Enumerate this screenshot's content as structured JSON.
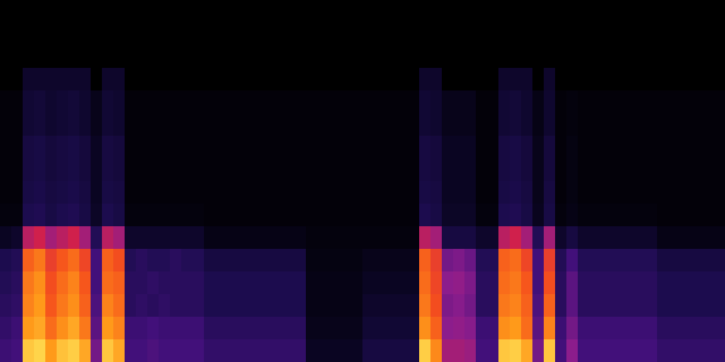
{
  "chart_data": {
    "type": "heatmap",
    "tick_labels": false,
    "zlim": [
      0,
      1
    ],
    "cells": [
      [
        0,
        0,
        0,
        0,
        0,
        0,
        0,
        0,
        0,
        0,
        0,
        0,
        0,
        0,
        0,
        0,
        0,
        0,
        0,
        0,
        0,
        0,
        0,
        0,
        0,
        0,
        0,
        0,
        0,
        0,
        0,
        0,
        0,
        0,
        0,
        0,
        0,
        0,
        0,
        0,
        0,
        0,
        0,
        0,
        0,
        0,
        0,
        0,
        0,
        0,
        0,
        0,
        0,
        0,
        0,
        0,
        0,
        0,
        0,
        0,
        0,
        0,
        0,
        0
      ],
      [
        0,
        0,
        0,
        0,
        0,
        0,
        0,
        0,
        0,
        0,
        0,
        0,
        0,
        0,
        0,
        0,
        0,
        0,
        0,
        0,
        0,
        0,
        0,
        0,
        0,
        0,
        0,
        0,
        0,
        0,
        0,
        0,
        0,
        0,
        0,
        0,
        0,
        0,
        0,
        0,
        0,
        0,
        0,
        0,
        0,
        0,
        0,
        0,
        0,
        0,
        0,
        0,
        0,
        0,
        0,
        0,
        0,
        0,
        0,
        0,
        0,
        0,
        0,
        0
      ],
      [
        0,
        0,
        0,
        0,
        0,
        0,
        0,
        0,
        0,
        0,
        0,
        0,
        0,
        0,
        0,
        0,
        0,
        0,
        0,
        0,
        0,
        0,
        0,
        0,
        0,
        0,
        0,
        0,
        0,
        0,
        0,
        0,
        0,
        0,
        0,
        0,
        0,
        0,
        0,
        0,
        0,
        0,
        0,
        0,
        0,
        0,
        0,
        0,
        0,
        0,
        0,
        0,
        0,
        0,
        0,
        0,
        0,
        0,
        0,
        0,
        0,
        0,
        0,
        0
      ],
      [
        0,
        0,
        0.1,
        0.1,
        0.1,
        0.1,
        0.1,
        0.1,
        0,
        0.1,
        0.1,
        0,
        0,
        0,
        0,
        0,
        0,
        0,
        0,
        0,
        0,
        0,
        0,
        0,
        0,
        0,
        0,
        0,
        0,
        0,
        0,
        0,
        0,
        0,
        0,
        0,
        0,
        0.1,
        0.1,
        0,
        0,
        0,
        0,
        0,
        0.1,
        0.1,
        0.1,
        0,
        0.1,
        0,
        0,
        0,
        0,
        0,
        0,
        0,
        0,
        0,
        0,
        0,
        0,
        0,
        0,
        0
      ],
      [
        0.02,
        0.02,
        0.12,
        0.13,
        0.11,
        0.12,
        0.13,
        0.11,
        0.06,
        0.12,
        0.11,
        0.02,
        0.02,
        0.02,
        0.02,
        0.02,
        0.02,
        0.02,
        0.02,
        0.02,
        0.02,
        0.02,
        0.02,
        0.02,
        0.02,
        0.02,
        0.02,
        0.02,
        0.02,
        0.02,
        0.02,
        0.02,
        0.02,
        0.02,
        0.02,
        0.02,
        0.02,
        0.12,
        0.11,
        0.06,
        0.06,
        0.06,
        0.02,
        0.02,
        0.12,
        0.13,
        0.11,
        0.05,
        0.11,
        0.02,
        0.03,
        0.02,
        0.02,
        0.02,
        0.02,
        0.02,
        0.02,
        0.02,
        0.02,
        0.02,
        0.02,
        0.02,
        0.02,
        0.02
      ],
      [
        0.02,
        0.02,
        0.12,
        0.13,
        0.11,
        0.12,
        0.13,
        0.11,
        0.06,
        0.12,
        0.11,
        0.02,
        0.02,
        0.02,
        0.02,
        0.02,
        0.02,
        0.02,
        0.02,
        0.02,
        0.02,
        0.02,
        0.02,
        0.02,
        0.02,
        0.02,
        0.02,
        0.02,
        0.02,
        0.02,
        0.02,
        0.02,
        0.02,
        0.02,
        0.02,
        0.02,
        0.02,
        0.12,
        0.11,
        0.06,
        0.06,
        0.06,
        0.02,
        0.02,
        0.12,
        0.13,
        0.11,
        0.05,
        0.11,
        0.02,
        0.03,
        0.02,
        0.02,
        0.02,
        0.02,
        0.02,
        0.02,
        0.02,
        0.02,
        0.02,
        0.02,
        0.02,
        0.02,
        0.02
      ],
      [
        0.02,
        0.02,
        0.15,
        0.16,
        0.14,
        0.15,
        0.16,
        0.14,
        0.08,
        0.15,
        0.14,
        0.02,
        0.02,
        0.02,
        0.02,
        0.02,
        0.02,
        0.02,
        0.02,
        0.02,
        0.02,
        0.02,
        0.02,
        0.02,
        0.02,
        0.02,
        0.02,
        0.02,
        0.02,
        0.02,
        0.02,
        0.02,
        0.02,
        0.02,
        0.02,
        0.02,
        0.02,
        0.15,
        0.14,
        0.08,
        0.08,
        0.08,
        0.02,
        0.02,
        0.15,
        0.16,
        0.14,
        0.06,
        0.14,
        0.02,
        0.04,
        0.02,
        0.02,
        0.02,
        0.02,
        0.02,
        0.02,
        0.02,
        0.02,
        0.02,
        0.02,
        0.02,
        0.02,
        0.02
      ],
      [
        0.02,
        0.02,
        0.15,
        0.16,
        0.14,
        0.15,
        0.16,
        0.14,
        0.08,
        0.15,
        0.14,
        0.02,
        0.02,
        0.02,
        0.02,
        0.02,
        0.02,
        0.02,
        0.02,
        0.02,
        0.02,
        0.02,
        0.02,
        0.02,
        0.02,
        0.02,
        0.02,
        0.02,
        0.02,
        0.02,
        0.02,
        0.02,
        0.02,
        0.02,
        0.02,
        0.02,
        0.02,
        0.15,
        0.14,
        0.08,
        0.08,
        0.08,
        0.02,
        0.02,
        0.15,
        0.16,
        0.14,
        0.06,
        0.14,
        0.02,
        0.04,
        0.02,
        0.02,
        0.02,
        0.02,
        0.02,
        0.02,
        0.02,
        0.02,
        0.02,
        0.02,
        0.02,
        0.02,
        0.02
      ],
      [
        0.02,
        0.02,
        0.16,
        0.17,
        0.15,
        0.16,
        0.17,
        0.15,
        0.08,
        0.16,
        0.15,
        0.02,
        0.02,
        0.02,
        0.02,
        0.02,
        0.02,
        0.02,
        0.02,
        0.02,
        0.02,
        0.02,
        0.02,
        0.02,
        0.02,
        0.02,
        0.02,
        0.02,
        0.02,
        0.02,
        0.02,
        0.02,
        0.02,
        0.02,
        0.02,
        0.02,
        0.02,
        0.16,
        0.15,
        0.08,
        0.08,
        0.08,
        0.02,
        0.02,
        0.16,
        0.17,
        0.15,
        0.06,
        0.15,
        0.02,
        0.04,
        0.02,
        0.02,
        0.02,
        0.02,
        0.02,
        0.02,
        0.02,
        0.02,
        0.02,
        0.02,
        0.02,
        0.02,
        0.02
      ],
      [
        0.03,
        0.03,
        0.18,
        0.19,
        0.16,
        0.18,
        0.19,
        0.16,
        0.09,
        0.18,
        0.16,
        0.03,
        0.03,
        0.03,
        0.03,
        0.03,
        0.03,
        0.03,
        0.02,
        0.02,
        0.02,
        0.02,
        0.02,
        0.02,
        0.02,
        0.02,
        0.02,
        0.02,
        0.02,
        0.02,
        0.02,
        0.02,
        0.02,
        0.02,
        0.02,
        0.02,
        0.02,
        0.18,
        0.16,
        0.09,
        0.09,
        0.09,
        0.03,
        0.03,
        0.18,
        0.19,
        0.16,
        0.07,
        0.16,
        0.03,
        0.05,
        0.03,
        0.03,
        0.03,
        0.03,
        0.03,
        0.03,
        0.03,
        0.02,
        0.02,
        0.02,
        0.02,
        0.02,
        0.02
      ],
      [
        0.08,
        0.1,
        0.55,
        0.6,
        0.5,
        0.55,
        0.6,
        0.5,
        0.2,
        0.55,
        0.5,
        0.1,
        0.1,
        0.1,
        0.1,
        0.1,
        0.1,
        0.1,
        0.05,
        0.05,
        0.05,
        0.05,
        0.05,
        0.05,
        0.05,
        0.05,
        0.05,
        0.03,
        0.03,
        0.03,
        0.03,
        0.03,
        0.03,
        0.03,
        0.03,
        0.03,
        0.03,
        0.55,
        0.5,
        0.15,
        0.15,
        0.15,
        0.1,
        0.1,
        0.55,
        0.6,
        0.5,
        0.2,
        0.5,
        0.1,
        0.15,
        0.1,
        0.1,
        0.1,
        0.1,
        0.1,
        0.1,
        0.1,
        0.05,
        0.05,
        0.05,
        0.05,
        0.05,
        0.05
      ],
      [
        0.18,
        0.2,
        0.78,
        0.82,
        0.7,
        0.76,
        0.8,
        0.72,
        0.3,
        0.78,
        0.74,
        0.2,
        0.22,
        0.2,
        0.2,
        0.22,
        0.2,
        0.2,
        0.15,
        0.15,
        0.15,
        0.15,
        0.15,
        0.15,
        0.15,
        0.15,
        0.15,
        0.04,
        0.04,
        0.04,
        0.04,
        0.04,
        0.06,
        0.06,
        0.06,
        0.06,
        0.06,
        0.78,
        0.7,
        0.4,
        0.42,
        0.38,
        0.2,
        0.2,
        0.78,
        0.8,
        0.72,
        0.3,
        0.7,
        0.2,
        0.3,
        0.2,
        0.2,
        0.2,
        0.2,
        0.2,
        0.2,
        0.2,
        0.15,
        0.15,
        0.15,
        0.15,
        0.15,
        0.15
      ],
      [
        0.2,
        0.22,
        0.82,
        0.86,
        0.74,
        0.8,
        0.84,
        0.76,
        0.3,
        0.8,
        0.78,
        0.22,
        0.22,
        0.24,
        0.22,
        0.22,
        0.22,
        0.22,
        0.18,
        0.18,
        0.18,
        0.18,
        0.18,
        0.18,
        0.18,
        0.18,
        0.18,
        0.05,
        0.05,
        0.05,
        0.05,
        0.05,
        0.08,
        0.08,
        0.08,
        0.08,
        0.08,
        0.8,
        0.72,
        0.45,
        0.46,
        0.42,
        0.22,
        0.22,
        0.8,
        0.82,
        0.76,
        0.3,
        0.74,
        0.22,
        0.35,
        0.22,
        0.22,
        0.22,
        0.22,
        0.22,
        0.22,
        0.22,
        0.18,
        0.18,
        0.18,
        0.18,
        0.18,
        0.18
      ],
      [
        0.22,
        0.24,
        0.84,
        0.88,
        0.76,
        0.82,
        0.86,
        0.78,
        0.32,
        0.84,
        0.8,
        0.22,
        0.24,
        0.22,
        0.24,
        0.22,
        0.22,
        0.22,
        0.18,
        0.18,
        0.18,
        0.18,
        0.18,
        0.18,
        0.18,
        0.18,
        0.18,
        0.05,
        0.05,
        0.05,
        0.05,
        0.05,
        0.1,
        0.1,
        0.1,
        0.1,
        0.1,
        0.82,
        0.74,
        0.42,
        0.44,
        0.4,
        0.22,
        0.22,
        0.82,
        0.84,
        0.78,
        0.32,
        0.78,
        0.22,
        0.35,
        0.22,
        0.22,
        0.22,
        0.22,
        0.22,
        0.22,
        0.22,
        0.18,
        0.18,
        0.18,
        0.18,
        0.18,
        0.18
      ],
      [
        0.25,
        0.28,
        0.88,
        0.9,
        0.8,
        0.86,
        0.9,
        0.82,
        0.35,
        0.88,
        0.84,
        0.28,
        0.28,
        0.3,
        0.28,
        0.28,
        0.28,
        0.28,
        0.22,
        0.22,
        0.22,
        0.22,
        0.22,
        0.22,
        0.22,
        0.22,
        0.22,
        0.06,
        0.06,
        0.06,
        0.06,
        0.06,
        0.12,
        0.12,
        0.12,
        0.12,
        0.12,
        0.86,
        0.78,
        0.45,
        0.46,
        0.44,
        0.28,
        0.28,
        0.86,
        0.88,
        0.8,
        0.35,
        0.84,
        0.28,
        0.4,
        0.28,
        0.28,
        0.28,
        0.28,
        0.28,
        0.28,
        0.28,
        0.22,
        0.22,
        0.22,
        0.22,
        0.22,
        0.22
      ],
      [
        0.28,
        0.3,
        0.95,
        0.97,
        0.88,
        0.94,
        0.96,
        0.9,
        0.4,
        0.95,
        0.9,
        0.3,
        0.3,
        0.32,
        0.3,
        0.3,
        0.3,
        0.3,
        0.25,
        0.25,
        0.25,
        0.25,
        0.25,
        0.25,
        0.25,
        0.25,
        0.25,
        0.08,
        0.08,
        0.08,
        0.08,
        0.08,
        0.15,
        0.15,
        0.15,
        0.15,
        0.15,
        0.96,
        0.85,
        0.5,
        0.5,
        0.48,
        0.3,
        0.3,
        0.95,
        0.96,
        0.9,
        0.4,
        0.95,
        0.3,
        0.45,
        0.3,
        0.3,
        0.3,
        0.3,
        0.3,
        0.3,
        0.3,
        0.25,
        0.25,
        0.25,
        0.25,
        0.25,
        0.25
      ]
    ]
  }
}
